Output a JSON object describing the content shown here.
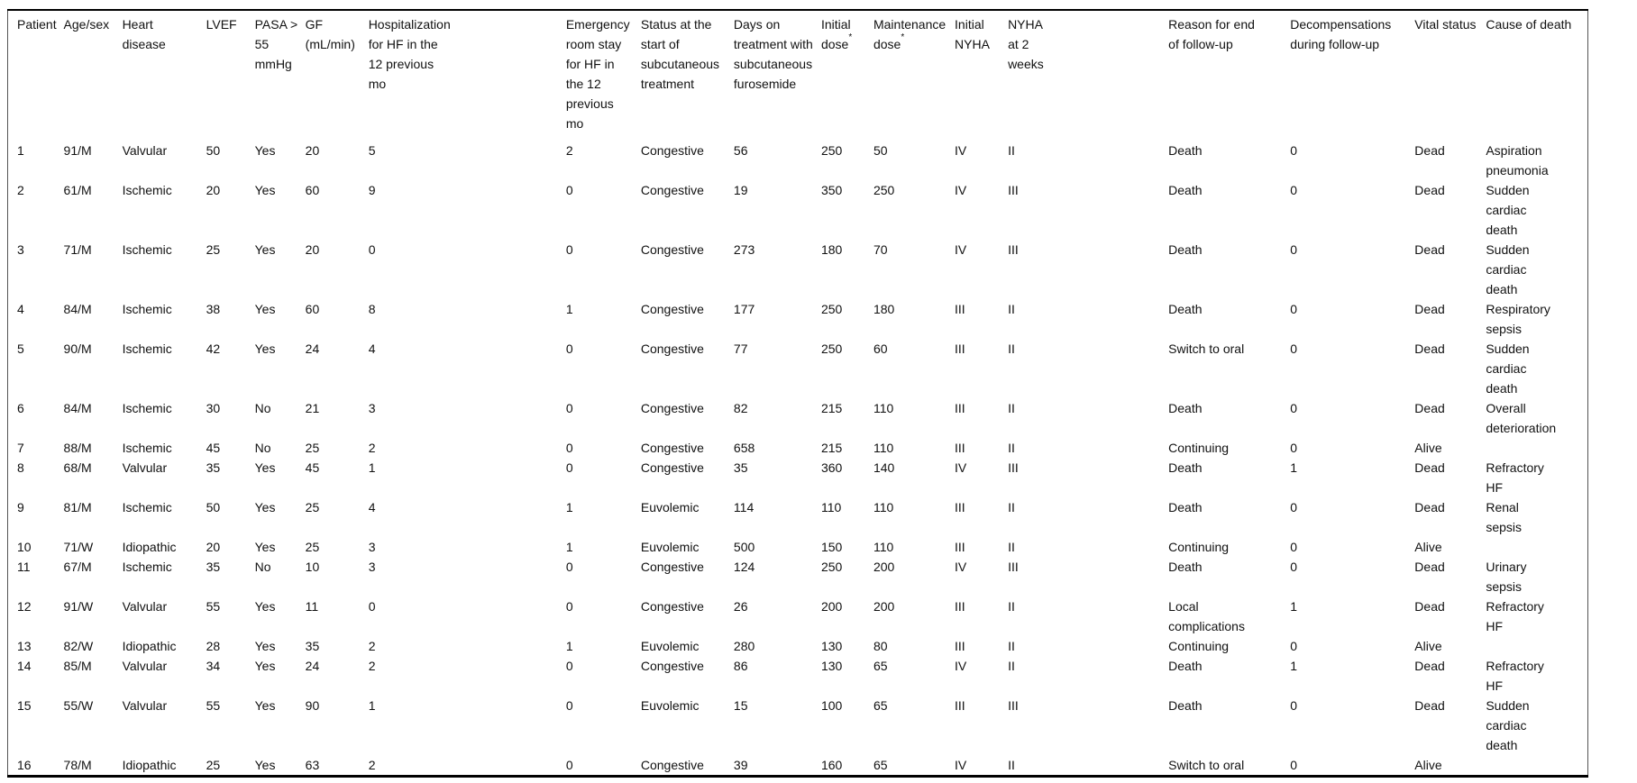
{
  "style": {
    "background": "#ffffff",
    "text_color": "#111111",
    "rule_color": "#000000"
  },
  "table": {
    "columns": [
      {
        "label": "Patient",
        "sup": ""
      },
      {
        "label": "Age/sex",
        "sup": ""
      },
      {
        "label": "Heart disease",
        "sup": ""
      },
      {
        "label": "LVEF",
        "sup": ""
      },
      {
        "label": "PASA > 55 mmHg",
        "sup": ""
      },
      {
        "label": "GF (mL/min)",
        "sup": ""
      },
      {
        "label": "Hospitalization for HF in the 12 previous mo",
        "sup": ""
      },
      {
        "label": "Emergency room stay for HF in the 12 previous mo",
        "sup": ""
      },
      {
        "label": "Status at the start of subcutaneous treatment",
        "sup": ""
      },
      {
        "label": "Days on treatment with subcutaneous furosemide",
        "sup": ""
      },
      {
        "label": "Initial dose",
        "sup": "*"
      },
      {
        "label": "Maintenance dose",
        "sup": "*"
      },
      {
        "label": "Initial NYHA",
        "sup": ""
      },
      {
        "label": "NYHA at 2 weeks",
        "sup": ""
      },
      {
        "label": "Reason for end of follow-up",
        "sup": ""
      },
      {
        "label": "Decompensations during follow-up",
        "sup": ""
      },
      {
        "label": "Vital status",
        "sup": ""
      },
      {
        "label": "Cause of death",
        "sup": ""
      }
    ],
    "rows": [
      [
        "1",
        "91/M",
        "Valvular",
        "50",
        "Yes",
        "20",
        "5",
        "2",
        "Congestive",
        "56",
        "250",
        "50",
        "IV",
        "II",
        "Death",
        "0",
        "Dead",
        "Aspiration pneumonia"
      ],
      [
        "2",
        "61/M",
        "Ischemic",
        "20",
        "Yes",
        "60",
        "9",
        "0",
        "Congestive",
        "19",
        "350",
        "250",
        "IV",
        "III",
        "Death",
        "0",
        "Dead",
        "Sudden cardiac death"
      ],
      [
        "3",
        "71/M",
        "Ischemic",
        "25",
        "Yes",
        "20",
        "0",
        "0",
        "Congestive",
        "273",
        "180",
        "70",
        "IV",
        "III",
        "Death",
        "0",
        "Dead",
        "Sudden cardiac death"
      ],
      [
        "4",
        "84/M",
        "Ischemic",
        "38",
        "Yes",
        "60",
        "8",
        "1",
        "Congestive",
        "177",
        "250",
        "180",
        "III",
        "II",
        "Death",
        "0",
        "Dead",
        "Respiratory sepsis"
      ],
      [
        "5",
        "90/M",
        "Ischemic",
        "42",
        "Yes",
        "24",
        "4",
        "0",
        "Congestive",
        "77",
        "250",
        "60",
        "III",
        "II",
        "Switch to oral",
        "0",
        "Dead",
        "Sudden cardiac death"
      ],
      [
        "6",
        "84/M",
        "Ischemic",
        "30",
        "No",
        "21",
        "3",
        "0",
        "Congestive",
        "82",
        "215",
        "110",
        "III",
        "II",
        "Death",
        "0",
        "Dead",
        "Overall deterioration"
      ],
      [
        "7",
        "88/M",
        "Ischemic",
        "45",
        "No",
        "25",
        "2",
        "0",
        "Congestive",
        "658",
        "215",
        "110",
        "III",
        "II",
        "Continuing",
        "0",
        "Alive",
        ""
      ],
      [
        "8",
        "68/M",
        "Valvular",
        "35",
        "Yes",
        "45",
        "1",
        "0",
        "Congestive",
        "35",
        "360",
        "140",
        "IV",
        "III",
        "Death",
        "1",
        "Dead",
        "Refractory HF"
      ],
      [
        "9",
        "81/M",
        "Ischemic",
        "50",
        "Yes",
        "25",
        "4",
        "1",
        "Euvolemic",
        "114",
        "110",
        "110",
        "III",
        "II",
        "Death",
        "0",
        "Dead",
        "Renal sepsis"
      ],
      [
        "10",
        "71/W",
        "Idiopathic",
        "20",
        "Yes",
        "25",
        "3",
        "1",
        "Euvolemic",
        "500",
        "150",
        "110",
        "III",
        "II",
        "Continuing",
        "0",
        "Alive",
        ""
      ],
      [
        "11",
        "67/M",
        "Ischemic",
        "35",
        "No",
        "10",
        "3",
        "0",
        "Congestive",
        "124",
        "250",
        "200",
        "IV",
        "III",
        "Death",
        "0",
        "Dead",
        "Urinary sepsis"
      ],
      [
        "12",
        "91/W",
        "Valvular",
        "55",
        "Yes",
        "11",
        "0",
        "0",
        "Congestive",
        "26",
        "200",
        "200",
        "III",
        "II",
        "Local complications",
        "1",
        "Dead",
        "Refractory HF"
      ],
      [
        "13",
        "82/W",
        "Idiopathic",
        "28",
        "Yes",
        "35",
        "2",
        "1",
        "Euvolemic",
        "280",
        "130",
        "80",
        "III",
        "II",
        "Continuing",
        "0",
        "Alive",
        ""
      ],
      [
        "14",
        "85/M",
        "Valvular",
        "34",
        "Yes",
        "24",
        "2",
        "0",
        "Congestive",
        "86",
        "130",
        "65",
        "IV",
        "II",
        "Death",
        "1",
        "Dead",
        "Refractory HF"
      ],
      [
        "15",
        "55/W",
        "Valvular",
        "55",
        "Yes",
        "90",
        "1",
        "0",
        "Euvolemic",
        "15",
        "100",
        "65",
        "III",
        "III",
        "Death",
        "0",
        "Dead",
        "Sudden cardiac death"
      ],
      [
        "16",
        "78/M",
        "Idiopathic",
        "25",
        "Yes",
        "63",
        "2",
        "0",
        "Congestive",
        "39",
        "160",
        "65",
        "IV",
        "II",
        "Switch to oral",
        "0",
        "Alive",
        ""
      ]
    ]
  }
}
